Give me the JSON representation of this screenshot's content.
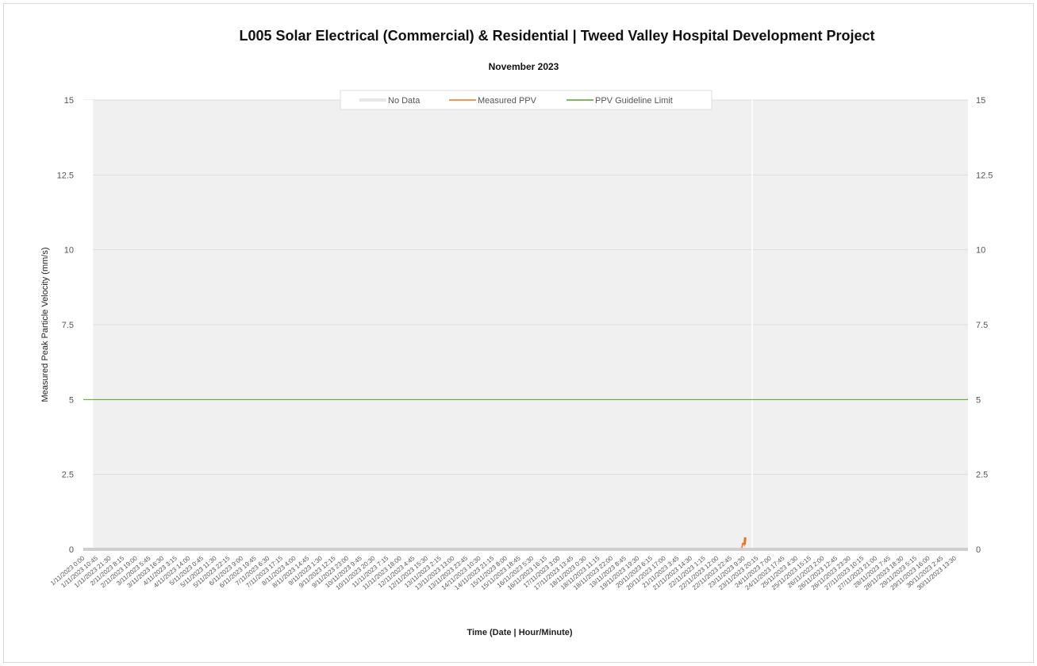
{
  "chart_data": {
    "type": "line",
    "title": "L005 Solar Electrical (Commercial) & Residential | Tweed Valley Hospital Development Project",
    "subtitle": "November 2023",
    "xlabel": "Time (Date | Hour/Minute)",
    "ylabel": "Measured Peak Particle Velocity (mm/s)",
    "ylim": [
      0,
      15
    ],
    "y_ticks": [
      "0",
      "2.5",
      "5",
      "7.5",
      "10",
      "12.5",
      "15"
    ],
    "y2_ticks": [
      "0",
      "2.5",
      "5",
      "7.5",
      "10",
      "12.5",
      "15"
    ],
    "x_ticks": [
      "1/11/2023 0:00",
      "1/11/2023 10:45",
      "1/11/2023 21:30",
      "2/11/2023 8:15",
      "2/11/2023 19:00",
      "3/11/2023 5:45",
      "3/11/2023 16:30",
      "4/11/2023 3:15",
      "4/11/2023 14:00",
      "5/11/2023 0:45",
      "5/11/2023 11:30",
      "5/11/2023 22:15",
      "6/11/2023 9:00",
      "6/11/2023 19:45",
      "7/11/2023 6:30",
      "7/11/2023 17:15",
      "8/11/2023 4:00",
      "8/11/2023 14:45",
      "9/11/2023 1:30",
      "9/11/2023 12:15",
      "9/11/2023 23:00",
      "10/11/2023 9:45",
      "10/11/2023 20:30",
      "11/11/2023 7:15",
      "11/11/2023 18:00",
      "12/11/2023 4:45",
      "12/11/2023 15:30",
      "13/11/2023 2:15",
      "13/11/2023 13:00",
      "13/11/2023 23:45",
      "14/11/2023 10:30",
      "14/11/2023 21:15",
      "15/11/2023 8:00",
      "15/11/2023 18:45",
      "16/11/2023 5:30",
      "16/11/2023 16:15",
      "17/11/2023 3:00",
      "17/11/2023 13:45",
      "18/11/2023 0:30",
      "18/11/2023 11:15",
      "18/11/2023 22:00",
      "19/11/2023 8:45",
      "19/11/2023 19:30",
      "20/11/2023 6:15",
      "20/11/2023 17:00",
      "21/11/2023 3:45",
      "21/11/2023 14:30",
      "22/11/2023 1:15",
      "22/11/2023 12:00",
      "22/11/2023 22:45",
      "23/11/2023 9:30",
      "23/11/2023 20:15",
      "24/11/2023 7:00",
      "24/11/2023 17:45",
      "25/11/2023 4:30",
      "25/11/2023 15:15",
      "26/11/2023 2:00",
      "26/11/2023 12:45",
      "26/11/2023 23:30",
      "27/11/2023 10:15",
      "27/11/2023 21:00",
      "28/11/2023 7:45",
      "28/11/2023 18:30",
      "29/11/2023 5:15",
      "29/11/2023 16:00",
      "30/11/2023 2:45",
      "30/11/2023 13:30"
    ],
    "legend_position": "top-center",
    "grid": true,
    "series": [
      {
        "name": "No Data",
        "kind": "gaps",
        "color": "#ffffff",
        "intervals_hours": [
          [
            0,
            8
          ],
          [
            543.8,
            544.8
          ]
        ]
      },
      {
        "name": "Measured PPV",
        "kind": "line",
        "color": "#e8731e",
        "points": [
          [
            536,
            0.05
          ],
          [
            536.5,
            0.2
          ],
          [
            537.2,
            0.2
          ],
          [
            537.8,
            0.15
          ],
          [
            538.2,
            0.4
          ],
          [
            538.6,
            0.15
          ],
          [
            539.2,
            0.4
          ]
        ]
      },
      {
        "name": "PPV Guideline Limit",
        "kind": "line",
        "color": "#5a9e2f",
        "value": 5
      }
    ]
  }
}
